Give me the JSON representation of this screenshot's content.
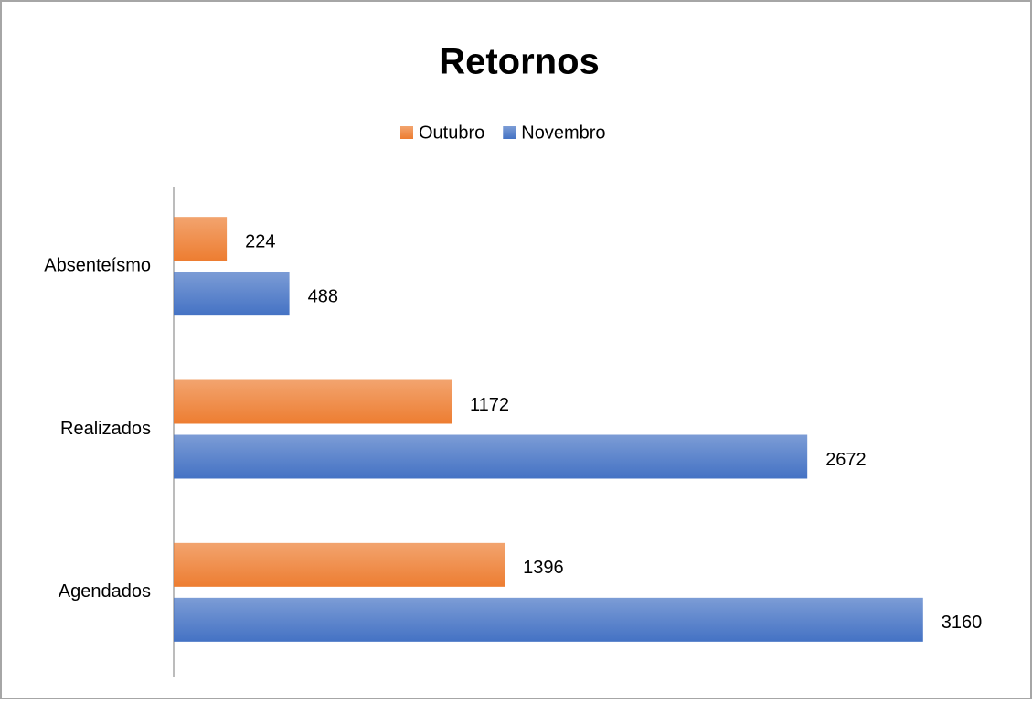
{
  "chart_data": {
    "type": "hbar",
    "title": "Retornos",
    "categories": [
      "Absenteísmo",
      "Realizados",
      "Agendados"
    ],
    "series": [
      {
        "name": "Outubro",
        "color": "#ED7D31",
        "values": [
          224,
          1172,
          1396
        ]
      },
      {
        "name": "Novembro",
        "color": "#4472C4",
        "values": [
          488,
          2672,
          3160
        ]
      }
    ],
    "xlim": [
      0,
      3500
    ],
    "legend": "top"
  }
}
